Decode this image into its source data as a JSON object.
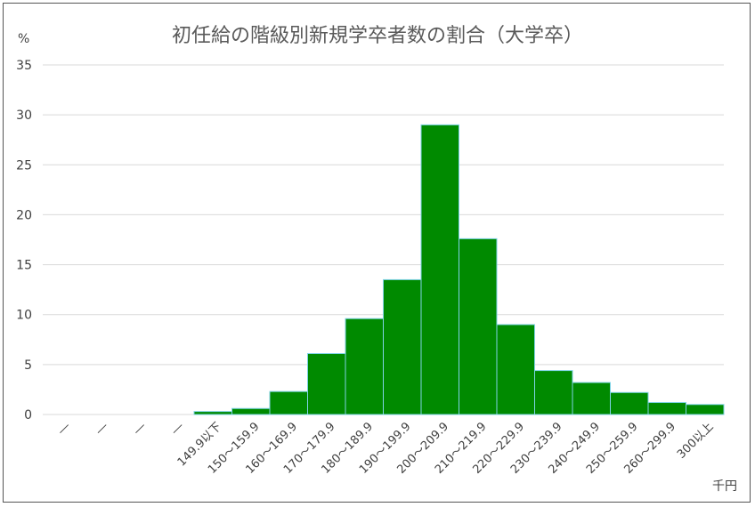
{
  "chart_data": {
    "type": "bar",
    "title": "初任給の階級別新規学卒者数の割合（大学卒）",
    "y_unit": "%",
    "x_unit": "千円",
    "ylim": [
      0,
      35
    ],
    "y_ticks": [
      0,
      5,
      10,
      15,
      20,
      25,
      30,
      35
    ],
    "grid": true,
    "bar_color": "#008A00",
    "bar_edge_color": "#7FD3E6",
    "grid_color": "#D9D9D9",
    "categories": [
      "―",
      "―",
      "―",
      "―",
      "149.9以下",
      "150～159.9",
      "160～169.9",
      "170～179.9",
      "180～189.9",
      "190～199.9",
      "200～209.9",
      "210～219.9",
      "220～229.9",
      "230～239.9",
      "240～249.9",
      "250～259.9",
      "260～299.9",
      "300以上"
    ],
    "values": [
      0,
      0,
      0,
      0,
      0.3,
      0.6,
      2.3,
      6.1,
      9.6,
      13.5,
      29.0,
      17.6,
      9.0,
      4.4,
      3.2,
      2.2,
      1.2,
      1.0
    ]
  }
}
